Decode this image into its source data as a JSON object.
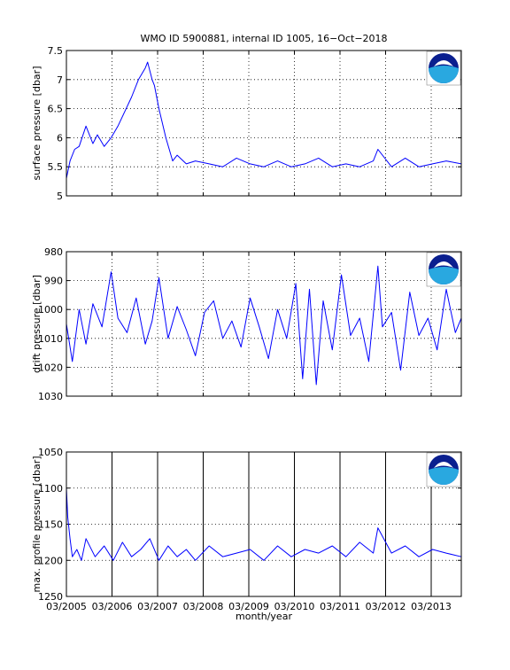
{
  "figure": {
    "title": "WMO ID 5900881, internal ID 1005, 16−Oct−2018",
    "xlabel": "month/year",
    "x_tick_labels": [
      "03/2005",
      "03/2006",
      "03/2007",
      "03/2008",
      "03/2009",
      "03/2010",
      "03/2011",
      "03/2012",
      "03/2013"
    ]
  },
  "colors": {
    "series": "#0000ff",
    "axes": "#000000",
    "grid": "#000000",
    "logo_dark": "#0a1f8f",
    "logo_light": "#29a8e0"
  },
  "chart_data": [
    {
      "type": "line",
      "ylabel": "surface pressure [dbar]",
      "ylim": [
        5,
        7.5
      ],
      "y_ticks": [
        5,
        5.5,
        6,
        6.5,
        7,
        7.5
      ],
      "y_tick_labels": [
        "5",
        "5.5",
        "6",
        "6.5",
        "7",
        "7.5"
      ],
      "y_reversed": false,
      "x_range": [
        2005.17,
        2013.83
      ],
      "x_grid": "dotted",
      "grid": true,
      "logo": "noaa-logo",
      "series": [
        {
          "x": [
            2005.17,
            2005.25,
            2005.35,
            2005.45,
            2005.6,
            2005.75,
            2005.85,
            2006.0,
            2006.15,
            2006.3,
            2006.45,
            2006.6,
            2006.75,
            2006.9,
            2006.95,
            2007.05,
            2007.1,
            2007.2,
            2007.35,
            2007.5,
            2007.6,
            2007.8,
            2008.0,
            2008.3,
            2008.6,
            2008.9,
            2009.2,
            2009.5,
            2009.8,
            2010.1,
            2010.4,
            2010.7,
            2011.0,
            2011.3,
            2011.6,
            2011.9,
            2012.0,
            2012.3,
            2012.6,
            2012.9,
            2013.2,
            2013.5,
            2013.83
          ],
          "y": [
            5.3,
            5.6,
            5.8,
            5.85,
            6.2,
            5.9,
            6.05,
            5.85,
            6.0,
            6.2,
            6.45,
            6.7,
            7.0,
            7.2,
            7.3,
            7.0,
            6.9,
            6.5,
            6.0,
            5.6,
            5.7,
            5.55,
            5.6,
            5.55,
            5.5,
            5.65,
            5.55,
            5.5,
            5.6,
            5.5,
            5.55,
            5.65,
            5.5,
            5.55,
            5.5,
            5.6,
            5.8,
            5.5,
            5.65,
            5.5,
            5.55,
            5.6,
            5.55
          ]
        }
      ]
    },
    {
      "type": "line",
      "ylabel": "drift pressure [dbar]",
      "ylim": [
        980,
        1030
      ],
      "y_ticks": [
        980,
        990,
        1000,
        1010,
        1020,
        1030
      ],
      "y_tick_labels": [
        "980",
        "990",
        "1000",
        "1010",
        "1020",
        "1030"
      ],
      "y_reversed": true,
      "x_range": [
        2005.17,
        2013.83
      ],
      "x_grid": "dotted",
      "grid": true,
      "logo": "noaa-logo",
      "series": [
        {
          "x": [
            2005.17,
            2005.3,
            2005.45,
            2005.6,
            2005.75,
            2005.95,
            2006.15,
            2006.3,
            2006.5,
            2006.7,
            2006.9,
            2007.05,
            2007.2,
            2007.4,
            2007.6,
            2007.8,
            2008.0,
            2008.2,
            2008.4,
            2008.6,
            2008.8,
            2009.0,
            2009.2,
            2009.4,
            2009.6,
            2009.8,
            2010.0,
            2010.2,
            2010.35,
            2010.5,
            2010.65,
            2010.8,
            2011.0,
            2011.2,
            2011.4,
            2011.6,
            2011.8,
            2012.0,
            2012.1,
            2012.3,
            2012.5,
            2012.7,
            2012.9,
            2013.1,
            2013.3,
            2013.5,
            2013.7,
            2013.83
          ],
          "y": [
            1005,
            1018,
            1000,
            1012,
            998,
            1006,
            987,
            1003,
            1008,
            996,
            1012,
            1004,
            989,
            1010,
            999,
            1007,
            1016,
            1001,
            997,
            1010,
            1004,
            1013,
            996,
            1006,
            1017,
            1000,
            1010,
            991,
            1024,
            993,
            1026,
            997,
            1014,
            988,
            1009,
            1003,
            1018,
            985,
            1006,
            1001,
            1021,
            994,
            1009,
            1003,
            1014,
            993,
            1008,
            1003
          ]
        }
      ]
    },
    {
      "type": "line",
      "ylabel": "max. profile pressure [dbar]",
      "ylim": [
        1050,
        1250
      ],
      "y_ticks": [
        1050,
        1100,
        1150,
        1200,
        1250
      ],
      "y_tick_labels": [
        "1050",
        "1100",
        "1150",
        "1200",
        "1250"
      ],
      "y_reversed": true,
      "x_range": [
        2005.17,
        2013.83
      ],
      "x_grid": "solid",
      "grid": true,
      "logo": "noaa-logo",
      "series": [
        {
          "x": [
            2005.17,
            2005.2,
            2005.25,
            2005.3,
            2005.4,
            2005.5,
            2005.6,
            2005.8,
            2006.0,
            2006.2,
            2006.4,
            2006.6,
            2006.8,
            2007.0,
            2007.2,
            2007.4,
            2007.6,
            2007.8,
            2008.0,
            2008.3,
            2008.6,
            2008.9,
            2009.2,
            2009.5,
            2009.8,
            2010.1,
            2010.4,
            2010.7,
            2011.0,
            2011.3,
            2011.6,
            2011.9,
            2012.0,
            2012.3,
            2012.6,
            2012.9,
            2013.2,
            2013.5,
            2013.83
          ],
          "y": [
            1100,
            1140,
            1170,
            1195,
            1185,
            1200,
            1170,
            1195,
            1180,
            1200,
            1175,
            1195,
            1185,
            1170,
            1200,
            1180,
            1195,
            1185,
            1200,
            1180,
            1195,
            1190,
            1185,
            1200,
            1180,
            1195,
            1185,
            1190,
            1180,
            1195,
            1175,
            1190,
            1155,
            1190,
            1180,
            1195,
            1185,
            1190,
            1195
          ]
        }
      ]
    }
  ]
}
